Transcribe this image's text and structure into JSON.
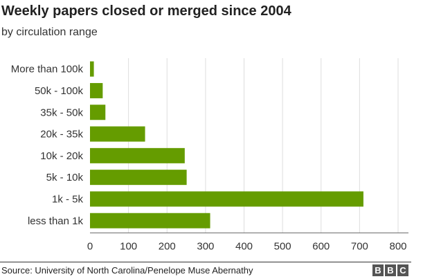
{
  "chart_data": {
    "type": "bar",
    "orientation": "horizontal",
    "title": "Weekly papers closed or merged since 2004",
    "subtitle": "by circulation range",
    "categories": [
      "More than 100k",
      "50k - 100k",
      "35k - 50k",
      "20k - 35k",
      "10k - 20k",
      "5k - 10k",
      "1k - 5k",
      "less than 1k"
    ],
    "values": [
      10,
      33,
      40,
      143,
      246,
      251,
      710,
      312
    ],
    "xlim": [
      0,
      800
    ],
    "xticks": [
      0,
      100,
      200,
      300,
      400,
      500,
      600,
      700,
      800
    ],
    "grid": "vertical",
    "bar_color": "#659c00"
  },
  "footer": {
    "source": "Source: University of North Carolina/Penelope Muse Abernathy",
    "logo_letters": [
      "B",
      "B",
      "C"
    ]
  }
}
